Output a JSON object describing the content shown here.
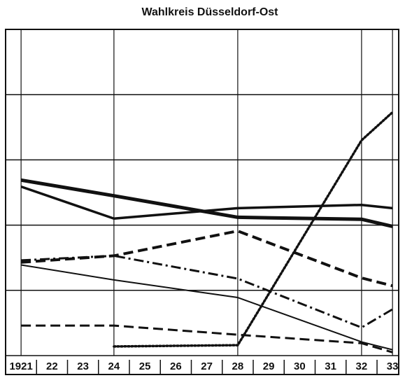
{
  "chart_data": {
    "type": "line",
    "title": "Wahlkreis Düsseldorf-Ost",
    "x": [
      1921,
      1924,
      1928,
      1932,
      1933
    ],
    "xlim": [
      1920.5,
      1933.2
    ],
    "xticks": [
      {
        "value": 1921,
        "label": "1921"
      },
      {
        "value": 1922,
        "label": "22"
      },
      {
        "value": 1923,
        "label": "23"
      },
      {
        "value": 1924,
        "label": "24"
      },
      {
        "value": 1925,
        "label": "25"
      },
      {
        "value": 1926,
        "label": "26"
      },
      {
        "value": 1927,
        "label": "27"
      },
      {
        "value": 1928,
        "label": "28"
      },
      {
        "value": 1929,
        "label": "29"
      },
      {
        "value": 1930,
        "label": "30"
      },
      {
        "value": 1931,
        "label": "31"
      },
      {
        "value": 1932,
        "label": "32"
      },
      {
        "value": 1933,
        "label": "33"
      }
    ],
    "ylim": [
      0,
      50
    ],
    "yticks": [
      0,
      10,
      20,
      30,
      40,
      50
    ],
    "grid": true,
    "series": [
      {
        "color": "#111111",
        "dash": "solid",
        "width": 5,
        "values": [
          26.9,
          24.5,
          21.2,
          20.9,
          19.8
        ]
      },
      {
        "color": "#111111",
        "dash": "solid",
        "width": 3.5,
        "values": [
          25.9,
          21.0,
          22.6,
          23.1,
          22.6
        ]
      },
      {
        "color": "#111111",
        "dash": "dashed",
        "width": 4,
        "values": [
          14.3,
          15.3,
          19.1,
          11.9,
          10.7
        ]
      },
      {
        "color": "#111111",
        "dash": "dashdot",
        "width": 3,
        "values": [
          14.6,
          15.3,
          11.8,
          4.3,
          7.1
        ]
      },
      {
        "color": "#111111",
        "dash": "solid",
        "width": 2,
        "values": [
          13.9,
          11.6,
          8.9,
          2.1,
          0.9
        ]
      },
      {
        "color": "#111111",
        "dash": "dashed",
        "width": 3,
        "values": [
          4.6,
          4.6,
          3.2,
          1.9,
          0.5
        ]
      },
      {
        "color": "#111111",
        "dash": "dotted",
        "width": 3.5,
        "values": [
          null,
          1.4,
          1.6,
          33.0,
          37.3
        ]
      }
    ]
  }
}
